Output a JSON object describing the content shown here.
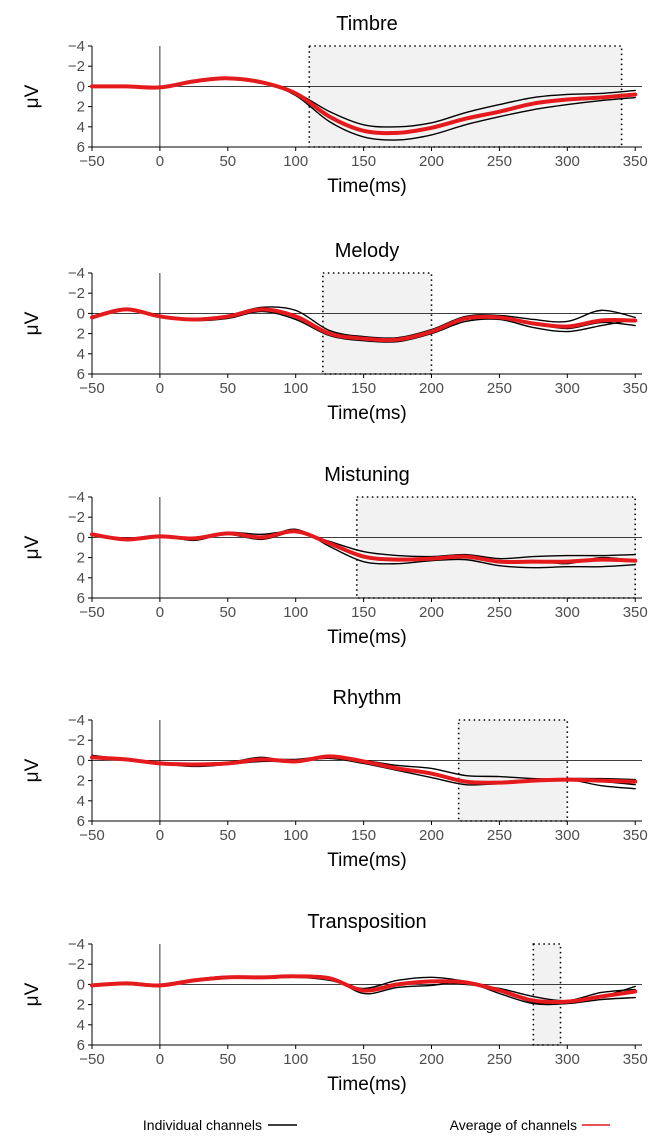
{
  "colors": {
    "individual": "#000000",
    "average": "#e41a1c",
    "window_fill": "#f2f2f2",
    "axis": "#000000",
    "tick_label": "#4d4d4d"
  },
  "legend": {
    "items": [
      {
        "label": "Individual channels",
        "color": "#000000"
      },
      {
        "label": "Average of channels",
        "color": "#e41a1c"
      }
    ]
  },
  "chart_data": [
    {
      "type": "line",
      "title": "Timbre",
      "xlabel": "Time(ms)",
      "ylabel": "μV",
      "xlim": [
        -50,
        355
      ],
      "ylim": [
        -4,
        6
      ],
      "y_inverted": true,
      "xticks": [
        -50,
        0,
        50,
        100,
        150,
        200,
        250,
        300,
        350
      ],
      "yticks": [
        -4,
        -2,
        0,
        2,
        4,
        6
      ],
      "ytick_labels": [
        "−4",
        "−2",
        "0",
        "2",
        "4",
        "6"
      ],
      "xtick_labels": [
        "−50",
        "0",
        "50",
        "100",
        "150",
        "200",
        "250",
        "300",
        "350"
      ],
      "window": [
        110,
        340
      ],
      "x": [
        -50,
        -25,
        0,
        25,
        50,
        75,
        100,
        125,
        150,
        175,
        200,
        225,
        250,
        275,
        300,
        325,
        350
      ],
      "series": [
        {
          "kind": "individual",
          "values": [
            -0.1,
            0,
            0.1,
            -0.5,
            -0.8,
            -0.4,
            0.6,
            2.5,
            3.8,
            4.0,
            3.6,
            2.6,
            1.8,
            1.1,
            0.8,
            0.7,
            0.4
          ]
        },
        {
          "kind": "individual",
          "values": [
            -0.1,
            0,
            0.2,
            -0.5,
            -0.8,
            -0.4,
            0.9,
            3.5,
            5.0,
            5.3,
            4.8,
            3.8,
            3.0,
            2.3,
            1.8,
            1.4,
            1.1
          ]
        },
        {
          "kind": "individual",
          "values": [
            0,
            0,
            0.1,
            -0.5,
            -0.7,
            -0.3,
            0.7,
            3.0,
            4.4,
            4.6,
            4.2,
            3.2,
            2.6,
            1.7,
            1.3,
            1.2,
            0.8
          ]
        },
        {
          "kind": "average",
          "values": [
            0,
            0,
            0.1,
            -0.5,
            -0.8,
            -0.4,
            0.7,
            3.0,
            4.4,
            4.6,
            4.1,
            3.2,
            2.5,
            1.7,
            1.3,
            1.1,
            0.8
          ]
        }
      ]
    },
    {
      "type": "line",
      "title": "Melody",
      "xlabel": "Time(ms)",
      "ylabel": "μV",
      "xlim": [
        -50,
        355
      ],
      "ylim": [
        -4,
        6
      ],
      "y_inverted": true,
      "xticks": [
        -50,
        0,
        50,
        100,
        150,
        200,
        250,
        300,
        350
      ],
      "yticks": [
        -4,
        -2,
        0,
        2,
        4,
        6
      ],
      "ytick_labels": [
        "−4",
        "−2",
        "0",
        "2",
        "4",
        "6"
      ],
      "xtick_labels": [
        "−50",
        "0",
        "50",
        "100",
        "150",
        "200",
        "250",
        "300",
        "350"
      ],
      "window": [
        120,
        200
      ],
      "x": [
        -50,
        -25,
        0,
        25,
        50,
        75,
        100,
        125,
        150,
        175,
        200,
        225,
        250,
        275,
        300,
        325,
        350
      ],
      "series": [
        {
          "kind": "individual",
          "values": [
            0.3,
            -0.5,
            0.3,
            0.5,
            0.2,
            -0.6,
            -0.3,
            1.7,
            2.3,
            2.4,
            1.6,
            0.3,
            0.2,
            0.6,
            0.8,
            -0.3,
            0.4
          ]
        },
        {
          "kind": "individual",
          "values": [
            0.4,
            -0.4,
            0.4,
            0.6,
            0.3,
            -0.4,
            0.4,
            2.0,
            2.5,
            2.6,
            1.9,
            0.5,
            0.3,
            1.0,
            1.5,
            0.9,
            1.2
          ]
        },
        {
          "kind": "individual",
          "values": [
            0.5,
            -0.4,
            0.3,
            0.7,
            0.5,
            -0.2,
            0.6,
            2.2,
            2.7,
            2.8,
            2.0,
            0.8,
            0.6,
            1.4,
            1.8,
            1.2,
            0.6
          ]
        },
        {
          "kind": "average",
          "values": [
            0.4,
            -0.4,
            0.3,
            0.6,
            0.3,
            -0.4,
            0.3,
            2.0,
            2.5,
            2.6,
            1.8,
            0.5,
            0.4,
            1.0,
            1.3,
            0.7,
            0.7
          ]
        }
      ]
    },
    {
      "type": "line",
      "title": "Mistuning",
      "xlabel": "Time(ms)",
      "ylabel": "μV",
      "xlim": [
        -50,
        355
      ],
      "ylim": [
        -4,
        6
      ],
      "y_inverted": true,
      "xticks": [
        -50,
        0,
        50,
        100,
        150,
        200,
        250,
        300,
        350
      ],
      "yticks": [
        -4,
        -2,
        0,
        2,
        4,
        6
      ],
      "ytick_labels": [
        "−4",
        "−2",
        "0",
        "2",
        "4",
        "6"
      ],
      "xtick_labels": [
        "−50",
        "0",
        "50",
        "100",
        "150",
        "200",
        "250",
        "300",
        "350"
      ],
      "window": [
        145,
        350
      ],
      "x": [
        -50,
        -25,
        0,
        25,
        50,
        75,
        100,
        125,
        150,
        175,
        200,
        225,
        250,
        275,
        300,
        325,
        350
      ],
      "series": [
        {
          "kind": "individual",
          "values": [
            -0.2,
            0.2,
            0,
            0,
            -0.5,
            -0.3,
            -0.6,
            0.4,
            1.4,
            1.8,
            1.9,
            1.7,
            2.1,
            1.9,
            1.8,
            1.8,
            1.7
          ]
        },
        {
          "kind": "individual",
          "values": [
            -0.3,
            0.1,
            -0.2,
            0.3,
            -0.4,
            0.1,
            -0.8,
            0.9,
            2.4,
            2.6,
            2.3,
            2.2,
            2.8,
            3.0,
            2.9,
            2.9,
            2.7
          ]
        },
        {
          "kind": "individual",
          "values": [
            -0.3,
            0.2,
            -0.1,
            0.1,
            -0.3,
            0.2,
            -0.5,
            0.6,
            1.9,
            2.2,
            2.1,
            1.8,
            2.4,
            2.3,
            2.6,
            2.0,
            2.3
          ]
        },
        {
          "kind": "average",
          "values": [
            -0.3,
            0.2,
            -0.1,
            0.1,
            -0.4,
            0.0,
            -0.6,
            0.6,
            1.9,
            2.2,
            2.1,
            1.9,
            2.4,
            2.4,
            2.4,
            2.2,
            2.3
          ]
        }
      ]
    },
    {
      "type": "line",
      "title": "Rhythm",
      "xlabel": "Time(ms)",
      "ylabel": "μV",
      "xlim": [
        -50,
        355
      ],
      "ylim": [
        -4,
        6
      ],
      "y_inverted": true,
      "xticks": [
        -50,
        0,
        50,
        100,
        150,
        200,
        250,
        300,
        350
      ],
      "yticks": [
        -4,
        -2,
        0,
        2,
        4,
        6
      ],
      "ytick_labels": [
        "−4",
        "−2",
        "0",
        "2",
        "4",
        "6"
      ],
      "xtick_labels": [
        "−50",
        "0",
        "50",
        "100",
        "150",
        "200",
        "250",
        "300",
        "350"
      ],
      "window": [
        220,
        300
      ],
      "x": [
        -50,
        -25,
        0,
        25,
        50,
        75,
        100,
        125,
        150,
        175,
        200,
        225,
        250,
        275,
        300,
        325,
        350
      ],
      "series": [
        {
          "kind": "individual",
          "values": [
            -0.5,
            -0.1,
            0.2,
            0.4,
            0.3,
            -0.1,
            -0.1,
            -0.4,
            0.0,
            0.5,
            0.8,
            1.5,
            1.6,
            1.8,
            1.9,
            2.1,
            2.4
          ]
        },
        {
          "kind": "individual",
          "values": [
            -0.3,
            0.0,
            0.3,
            0.6,
            0.4,
            0.1,
            0.1,
            -0.2,
            0.3,
            1.0,
            1.7,
            2.4,
            2.3,
            2.1,
            1.9,
            2.5,
            2.8
          ]
        },
        {
          "kind": "individual",
          "values": [
            -0.2,
            -0.1,
            0.3,
            0.3,
            0.2,
            -0.3,
            0.2,
            -0.5,
            0.1,
            0.8,
            1.3,
            2.1,
            2.2,
            2.0,
            1.8,
            1.8,
            1.9
          ]
        },
        {
          "kind": "average",
          "values": [
            -0.3,
            -0.1,
            0.3,
            0.4,
            0.3,
            -0.1,
            0.1,
            -0.4,
            0.1,
            0.8,
            1.3,
            2.1,
            2.2,
            2.0,
            1.9,
            2.0,
            2.1
          ]
        }
      ]
    },
    {
      "type": "line",
      "title": "Transposition",
      "xlabel": "Time(ms)",
      "ylabel": "μV",
      "xlim": [
        -50,
        355
      ],
      "ylim": [
        -4,
        6
      ],
      "y_inverted": true,
      "xticks": [
        -50,
        0,
        50,
        100,
        150,
        200,
        250,
        300,
        350
      ],
      "yticks": [
        -4,
        -2,
        0,
        2,
        4,
        6
      ],
      "ytick_labels": [
        "−4",
        "−2",
        "0",
        "2",
        "4",
        "6"
      ],
      "xtick_labels": [
        "−50",
        "0",
        "50",
        "100",
        "150",
        "200",
        "250",
        "300",
        "350"
      ],
      "window": [
        275,
        295
      ],
      "x": [
        -50,
        -25,
        0,
        25,
        50,
        75,
        100,
        125,
        150,
        175,
        200,
        225,
        250,
        275,
        300,
        325,
        350
      ],
      "series": [
        {
          "kind": "individual",
          "values": [
            0.1,
            -0.1,
            0.0,
            -0.5,
            -0.8,
            -0.6,
            -0.7,
            -0.4,
            0.4,
            -0.4,
            -0.7,
            -0.3,
            0.5,
            1.8,
            1.7,
            1.2,
            0.2
          ]
        },
        {
          "kind": "individual",
          "values": [
            0.0,
            0.0,
            0.1,
            -0.3,
            -0.6,
            -0.8,
            -0.8,
            -0.7,
            0.9,
            0.3,
            0.1,
            -0.2,
            0.9,
            1.9,
            1.9,
            1.5,
            1.3
          ]
        },
        {
          "kind": "individual",
          "values": [
            0.1,
            0.0,
            0.2,
            -0.4,
            -0.7,
            -0.6,
            -0.9,
            -0.6,
            0.6,
            0.0,
            -0.2,
            0.0,
            0.4,
            1.2,
            1.6,
            0.8,
            0.5
          ]
        },
        {
          "kind": "average",
          "values": [
            0.1,
            -0.1,
            0.1,
            -0.4,
            -0.7,
            -0.7,
            -0.8,
            -0.6,
            0.6,
            0.0,
            -0.3,
            -0.2,
            0.6,
            1.6,
            1.7,
            1.2,
            0.7
          ]
        }
      ]
    }
  ]
}
